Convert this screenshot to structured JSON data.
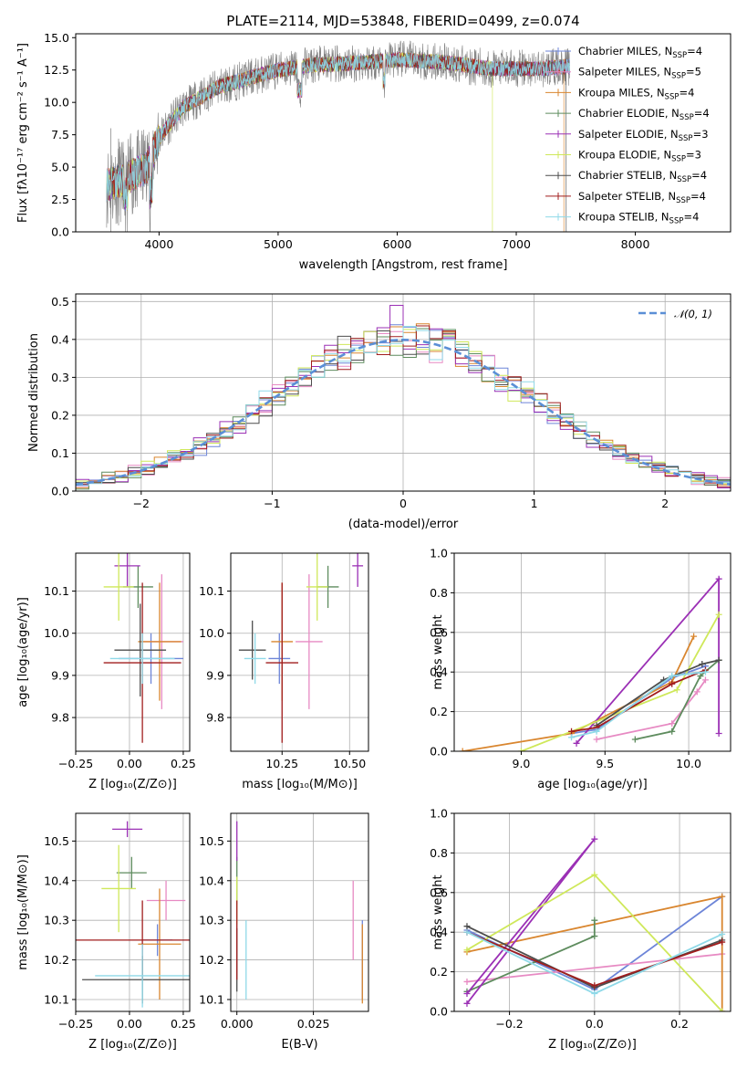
{
  "chart_data": [
    {
      "type": "line",
      "title": "PLATE=2114, MJD=53848, FIBERID=0499, z=0.074",
      "xlabel": "wavelength [Angstrom, rest frame]",
      "ylabel": "Flux [fλ10⁻¹⁷ erg cm⁻² s⁻¹ A⁻¹]",
      "xlim": [
        3300,
        8800
      ],
      "ylim": [
        0,
        15.3
      ],
      "xticks": [
        "4000",
        "5000",
        "6000",
        "7000",
        "8000"
      ],
      "yticks": [
        "0.0",
        "2.5",
        "5.0",
        "7.5",
        "10.0",
        "12.5",
        "15.0"
      ],
      "grid": false,
      "legend": "upper right",
      "continuum": {
        "x": [
          3550,
          3700,
          3900,
          4000,
          4200,
          4500,
          4800,
          5000,
          5300,
          5600,
          6000,
          6400,
          6800,
          7200,
          7450
        ],
        "y": [
          3.6,
          4.0,
          5.0,
          7.3,
          9.6,
          11.2,
          12.0,
          12.5,
          12.9,
          13.0,
          13.3,
          13.1,
          12.6,
          12.6,
          12.8
        ]
      },
      "model_cutoffs": [
        {
          "series": "Kroupa ELODIE",
          "x_end": 6800
        },
        {
          "series": "Kroupa MILES",
          "x_end": 7400
        },
        {
          "series": "Chabrier STELIB",
          "x_end": 7420
        }
      ],
      "series": [
        {
          "name": "Chabrier MILES, N",
          "sub": "SSP",
          "suffix": "=4",
          "color": "#6d85d8"
        },
        {
          "name": "Salpeter MILES, N",
          "sub": "SSP",
          "suffix": "=5",
          "color": "#e78ac3"
        },
        {
          "name": "Kroupa MILES, N",
          "sub": "SSP",
          "suffix": "=4",
          "color": "#d9862f"
        },
        {
          "name": "Chabrier ELODIE, N",
          "sub": "SSP",
          "suffix": "=4",
          "color": "#5e8c5e"
        },
        {
          "name": "Salpeter ELODIE, N",
          "sub": "SSP",
          "suffix": "=3",
          "color": "#9b30b5"
        },
        {
          "name": "Kroupa ELODIE, N",
          "sub": "SSP",
          "suffix": "=3",
          "color": "#cfe85a"
        },
        {
          "name": "Chabrier STELIB, N",
          "sub": "SSP",
          "suffix": "=4",
          "color": "#4d4d4d"
        },
        {
          "name": "Salpeter STELIB, N",
          "sub": "SSP",
          "suffix": "=4",
          "color": "#a11d1d"
        },
        {
          "name": "Kroupa STELIB, N",
          "sub": "SSP",
          "suffix": "=4",
          "color": "#8fd9e8"
        }
      ]
    },
    {
      "type": "line",
      "xlabel": "(data-model)/error",
      "ylabel": "Normed distribution",
      "xlim": [
        -2.5,
        2.5
      ],
      "ylim": [
        0,
        0.52
      ],
      "xticks": [
        "−2",
        "−1",
        "0",
        "1",
        "2"
      ],
      "yticks": [
        "0.0",
        "0.1",
        "0.2",
        "0.3",
        "0.4",
        "0.5"
      ],
      "grid": true,
      "legend": "upper right",
      "legend_label": "𝒩(0, 1)",
      "gaussian": {
        "mean": 0,
        "sigma": 1
      }
    },
    {
      "type": "scatter",
      "xlabel": "Z [log₁₀(Z/Z⊙)]",
      "ylabel": "age  [log₁₀(age/yr)]",
      "xlim": [
        -0.25,
        0.28
      ],
      "ylim": [
        9.72,
        10.19
      ],
      "xticks": [
        "−0.25",
        "0.00",
        "0.25"
      ],
      "yticks": [
        "9.8",
        "9.9",
        "10.0",
        "10.1"
      ],
      "grid": true,
      "points": [
        {
          "series": "Chabrier MILES",
          "x": 0.1,
          "y": 9.94,
          "xerr": 0.15,
          "yerr": 0.06
        },
        {
          "series": "Salpeter MILES",
          "x": 0.15,
          "y": 9.98,
          "xerr": 0.1,
          "yerr": 0.16
        },
        {
          "series": "Kroupa MILES",
          "x": 0.14,
          "y": 9.98,
          "xerr": 0.1,
          "yerr": 0.14
        },
        {
          "series": "Chabrier ELODIE",
          "x": 0.04,
          "y": 10.11,
          "xerr": 0.07,
          "yerr": 0.05
        },
        {
          "series": "Salpeter ELODIE",
          "x": -0.01,
          "y": 10.16,
          "xerr": 0.06,
          "yerr": 0.05
        },
        {
          "series": "Kroupa ELODIE",
          "x": -0.05,
          "y": 10.11,
          "xerr": 0.07,
          "yerr": 0.08
        },
        {
          "series": "Chabrier STELIB",
          "x": 0.05,
          "y": 9.96,
          "xerr": 0.12,
          "yerr": 0.11
        },
        {
          "series": "Salpeter STELIB",
          "x": 0.06,
          "y": 9.93,
          "xerr": 0.18,
          "yerr": 0.19
        },
        {
          "series": "Kroupa STELIB",
          "x": 0.06,
          "y": 9.94,
          "xerr": 0.15,
          "yerr": 0.06
        }
      ]
    },
    {
      "type": "scatter",
      "xlabel": "mass [log₁₀(M/M⊙)]",
      "xlim": [
        10.06,
        10.57
      ],
      "ylim": [
        9.72,
        10.19
      ],
      "xticks": [
        "10.25",
        "10.50"
      ],
      "yticks": [
        "9.8",
        "9.9",
        "10.0",
        "10.1"
      ],
      "grid": true,
      "points": [
        {
          "series": "Chabrier MILES",
          "x": 10.24,
          "y": 9.94,
          "xerr": 0.04,
          "yerr": 0.06
        },
        {
          "series": "Salpeter MILES",
          "x": 10.35,
          "y": 9.98,
          "xerr": 0.05,
          "yerr": 0.16
        },
        {
          "series": "Kroupa MILES",
          "x": 10.25,
          "y": 9.98,
          "xerr": 0.04,
          "yerr": 0.14
        },
        {
          "series": "Chabrier ELODIE",
          "x": 10.42,
          "y": 10.11,
          "xerr": 0.04,
          "yerr": 0.05
        },
        {
          "series": "Salpeter ELODIE",
          "x": 10.53,
          "y": 10.16,
          "xerr": 0.02,
          "yerr": 0.05
        },
        {
          "series": "Kroupa ELODIE",
          "x": 10.38,
          "y": 10.11,
          "xerr": 0.04,
          "yerr": 0.08
        },
        {
          "series": "Chabrier STELIB",
          "x": 10.14,
          "y": 9.96,
          "xerr": 0.05,
          "yerr": 0.07
        },
        {
          "series": "Salpeter STELIB",
          "x": 10.25,
          "y": 9.93,
          "xerr": 0.06,
          "yerr": 0.19
        },
        {
          "series": "Kroupa STELIB",
          "x": 10.15,
          "y": 9.94,
          "xerr": 0.04,
          "yerr": 0.06
        }
      ]
    },
    {
      "type": "line",
      "xlabel": "age  [log₁₀(age/yr)]",
      "ylabel": "mass weight",
      "xlim": [
        8.6,
        10.25
      ],
      "ylim": [
        0,
        1.0
      ],
      "xticks": [
        "9.0",
        "9.5",
        "10.0"
      ],
      "yticks": [
        "0.0",
        "0.2",
        "0.4",
        "0.6",
        "0.8",
        "1.0"
      ],
      "grid": true,
      "series": [
        {
          "name": "Chabrier MILES",
          "x": [
            9.3,
            9.45,
            9.9,
            10.1
          ],
          "y": [
            0.09,
            0.11,
            0.37,
            0.43
          ]
        },
        {
          "name": "Salpeter MILES",
          "x": [
            9.45,
            9.9,
            10.05,
            10.1
          ],
          "y": [
            0.06,
            0.14,
            0.3,
            0.36
          ]
        },
        {
          "name": "Kroupa MILES",
          "x": [
            8.65,
            9.3,
            9.9,
            10.03
          ],
          "y": [
            0.0,
            0.09,
            0.35,
            0.58
          ]
        },
        {
          "name": "Chabrier ELODIE",
          "x": [
            9.68,
            9.9,
            10.07,
            10.18
          ],
          "y": [
            0.06,
            0.1,
            0.38,
            0.46
          ]
        },
        {
          "name": "Salpeter ELODIE",
          "x": [
            9.33,
            10.18,
            10.18
          ],
          "y": [
            0.04,
            0.87,
            0.09
          ]
        },
        {
          "name": "Kroupa ELODIE",
          "x": [
            9.0,
            9.93,
            10.18
          ],
          "y": [
            0.0,
            0.31,
            0.69
          ]
        },
        {
          "name": "Chabrier STELIB",
          "x": [
            9.45,
            9.85,
            10.08,
            10.18
          ],
          "y": [
            0.13,
            0.36,
            0.44,
            0.46
          ]
        },
        {
          "name": "Salpeter STELIB",
          "x": [
            9.3,
            9.45,
            9.9,
            10.1
          ],
          "y": [
            0.1,
            0.12,
            0.34,
            0.41
          ]
        },
        {
          "name": "Kroupa STELIB",
          "x": [
            9.3,
            9.45,
            9.9,
            10.1
          ],
          "y": [
            0.07,
            0.1,
            0.38,
            0.4
          ]
        }
      ]
    },
    {
      "type": "scatter",
      "xlabel": "Z [log₁₀(Z/Z⊙)]",
      "ylabel": "mass [log₁₀(M/M⊙)]",
      "xlim": [
        -0.25,
        0.28
      ],
      "ylim": [
        10.07,
        10.57
      ],
      "xticks": [
        "−0.25",
        "0.00",
        "0.25"
      ],
      "yticks": [
        "10.1",
        "10.2",
        "10.3",
        "10.4",
        "10.5"
      ],
      "grid": true,
      "points": [
        {
          "series": "Chabrier MILES",
          "x": 0.13,
          "y": 10.25,
          "xerr": 0.07,
          "yerr": 0.04
        },
        {
          "series": "Salpeter MILES",
          "x": 0.17,
          "y": 10.35,
          "xerr": 0.09,
          "yerr": 0.05
        },
        {
          "series": "Kroupa MILES",
          "x": 0.14,
          "y": 10.24,
          "xerr": 0.1,
          "yerr": 0.14
        },
        {
          "series": "Chabrier ELODIE",
          "x": 0.01,
          "y": 10.42,
          "xerr": 0.07,
          "yerr": 0.04
        },
        {
          "series": "Salpeter ELODIE",
          "x": -0.01,
          "y": 10.53,
          "xerr": 0.07,
          "yerr": 0.02
        },
        {
          "series": "Kroupa ELODIE",
          "x": -0.05,
          "y": 10.38,
          "xerr": 0.08,
          "yerr": 0.11
        },
        {
          "series": "Chabrier STELIB",
          "x": 0.06,
          "y": 10.15,
          "xerr": 0.28,
          "yerr": 0.06
        },
        {
          "series": "Salpeter STELIB",
          "x": 0.06,
          "y": 10.25,
          "xerr": 0.33,
          "yerr": 0.1
        },
        {
          "series": "Kroupa STELIB",
          "x": 0.06,
          "y": 10.16,
          "xerr": 0.22,
          "yerr": 0.08
        }
      ]
    },
    {
      "type": "scatter",
      "xlabel": "E(B-V)",
      "xlim": [
        -0.002,
        0.043
      ],
      "ylim": [
        10.07,
        10.57
      ],
      "xticks": [
        "0.000",
        "0.025"
      ],
      "yticks": [
        "10.1",
        "10.2",
        "10.3",
        "10.4",
        "10.5"
      ],
      "grid": true,
      "points": [
        {
          "series": "Chabrier MILES",
          "x": 0.041,
          "y": 10.2,
          "xerr": 0,
          "yerr": 0.1
        },
        {
          "series": "Salpeter MILES",
          "x": 0.038,
          "y": 10.3,
          "xerr": 0,
          "yerr": 0.1
        },
        {
          "series": "Kroupa MILES",
          "x": 0.041,
          "y": 10.19,
          "xerr": 0,
          "yerr": 0.1
        },
        {
          "series": "Chabrier ELODIE",
          "x": 0.0,
          "y": 10.4,
          "xerr": 0,
          "yerr": 0.06
        },
        {
          "series": "Salpeter ELODIE",
          "x": 0.0,
          "y": 10.5,
          "xerr": 0,
          "yerr": 0.05
        },
        {
          "series": "Kroupa ELODIE",
          "x": 0.0,
          "y": 10.35,
          "xerr": 0,
          "yerr": 0.06
        },
        {
          "series": "Chabrier STELIB",
          "x": 0.0,
          "y": 10.2,
          "xerr": 0,
          "yerr": 0.08
        },
        {
          "series": "Salpeter STELIB",
          "x": 0.0,
          "y": 10.25,
          "xerr": 0,
          "yerr": 0.1
        },
        {
          "series": "Kroupa STELIB",
          "x": 0.003,
          "y": 10.2,
          "xerr": 0,
          "yerr": 0.1
        }
      ]
    },
    {
      "type": "line",
      "xlabel": "Z [log₁₀(Z/Z⊙)]",
      "ylabel": "mass weight",
      "xlim": [
        -0.33,
        0.32
      ],
      "ylim": [
        0,
        1.0
      ],
      "xticks": [
        "−0.2",
        "0.0",
        "0.2"
      ],
      "yticks": [
        "0.0",
        "0.2",
        "0.4",
        "0.6",
        "0.8",
        "1.0"
      ],
      "grid": true,
      "series": [
        {
          "name": "Chabrier MILES",
          "x": [
            -0.3,
            0.0,
            0.3
          ],
          "y": [
            0.41,
            0.11,
            0.58
          ]
        },
        {
          "name": "Salpeter MILES",
          "x": [
            -0.3,
            0.3
          ],
          "y": [
            0.15,
            0.29
          ]
        },
        {
          "name": "Kroupa MILES",
          "x": [
            -0.3,
            0.3,
            0.3
          ],
          "y": [
            0.3,
            0.58,
            0.0
          ]
        },
        {
          "name": "Chabrier ELODIE",
          "x": [
            -0.3,
            0.0,
            0.0
          ],
          "y": [
            0.1,
            0.38,
            0.46
          ]
        },
        {
          "name": "Salpeter ELODIE",
          "x": [
            -0.3,
            0.0,
            -0.3
          ],
          "y": [
            0.09,
            0.87,
            0.04
          ]
        },
        {
          "name": "Kroupa ELODIE",
          "x": [
            -0.3,
            0.0,
            0.3
          ],
          "y": [
            0.31,
            0.69,
            0.0
          ]
        },
        {
          "name": "Chabrier STELIB",
          "x": [
            -0.3,
            0.0,
            0.3
          ],
          "y": [
            0.43,
            0.12,
            0.36
          ]
        },
        {
          "name": "Salpeter STELIB",
          "x": [
            -0.3,
            0.0,
            0.3
          ],
          "y": [
            0.4,
            0.13,
            0.35
          ]
        },
        {
          "name": "Kroupa STELIB",
          "x": [
            -0.3,
            0.0,
            0.3
          ],
          "y": [
            0.4,
            0.09,
            0.39
          ]
        }
      ]
    }
  ]
}
